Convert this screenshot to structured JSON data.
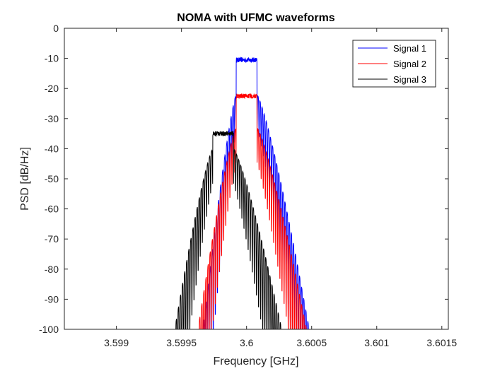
{
  "chart_data": {
    "type": "line",
    "title": "NOMA with UFMC waveforms",
    "xlabel": "Frequency [GHz]",
    "ylabel": "PSD [dB/Hz]",
    "xlim": [
      3.5986,
      3.60155
    ],
    "ylim": [
      -100,
      0
    ],
    "xticks": [
      3.599,
      3.5995,
      3.6,
      3.6005,
      3.601,
      3.6015
    ],
    "xtick_labels": [
      "3.599",
      "3.5995",
      "3.6",
      "3.6005",
      "3.601",
      "3.6015"
    ],
    "yticks": [
      0,
      -10,
      -20,
      -30,
      -40,
      -50,
      -60,
      -70,
      -80,
      -90,
      -100
    ],
    "ytick_labels": [
      "0",
      "-10",
      "-20",
      "-30",
      "-40",
      "-50",
      "-60",
      "-70",
      "-80",
      "-90",
      "-100"
    ],
    "grid": false,
    "legend_position": "top-right",
    "series": [
      {
        "name": "Signal 1",
        "color": "#0000ff",
        "passband": [
          3.59992,
          3.60008
        ],
        "level": -10.5,
        "edge_level": -22,
        "floor_start": [
          3.59966,
          3.60049
        ],
        "num_subbands": 10
      },
      {
        "name": "Signal 2",
        "color": "#ff0000",
        "passband": [
          3.59992,
          3.60008
        ],
        "level": -22.5,
        "edge_level": -33,
        "floor_start": [
          3.59962,
          3.60047
        ],
        "num_subbands": 10
      },
      {
        "name": "Signal 3",
        "color": "#000000",
        "passband": [
          3.59974,
          3.5999
        ],
        "level": -35,
        "edge_level": -40,
        "floor_start": [
          3.59944,
          3.60028
        ],
        "num_subbands": 10
      }
    ]
  }
}
